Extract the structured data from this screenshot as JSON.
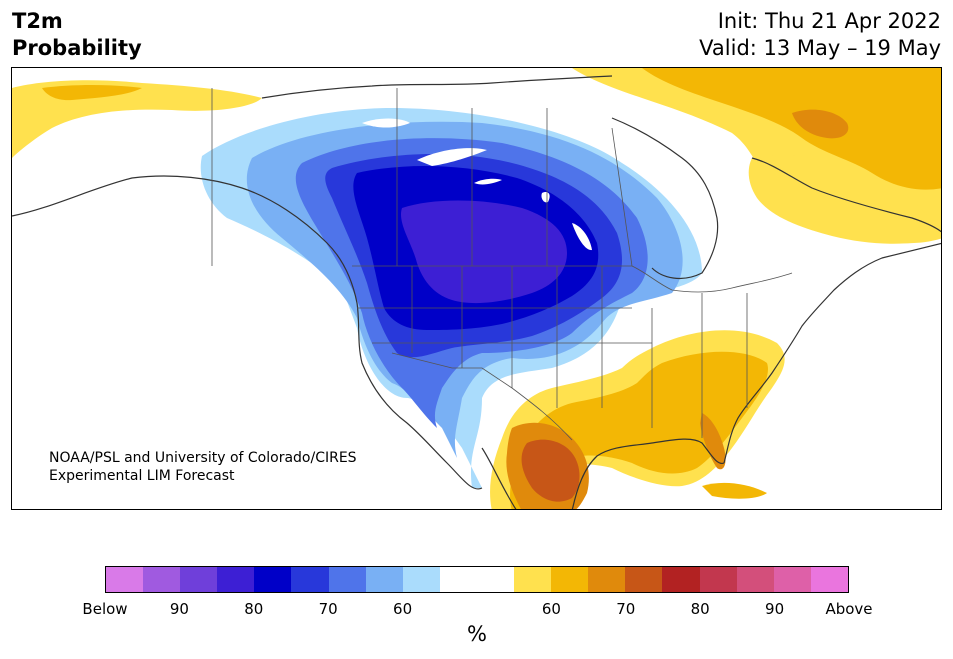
{
  "title": {
    "line1": "T2m",
    "line2": "Probability"
  },
  "header": {
    "init": "Init: Thu 21 Apr 2022",
    "valid": "Valid: 13 May – 19 May"
  },
  "credit": {
    "line1": "NOAA/PSL and University of Colorado/CIRES",
    "line2": "Experimental LIM Forecast"
  },
  "colorbar": {
    "unit": "%",
    "colors": [
      "#d97ae8",
      "#a05ae0",
      "#6f3fda",
      "#3d1fd4",
      "#0000c8",
      "#2838da",
      "#4f74ea",
      "#79b0f4",
      "#aadcfc",
      "#ffffff",
      "#ffffff",
      "#ffe14e",
      "#f3b705",
      "#e08a0c",
      "#c75617",
      "#b22222",
      "#c2374e",
      "#d34f7b",
      "#de60a8",
      "#ea75de"
    ],
    "labels": [
      "Below",
      "90",
      "80",
      "70",
      "60",
      "60",
      "70",
      "80",
      "90",
      "Above"
    ]
  },
  "colors": {
    "below_90": "#a05ae0",
    "below_80": "#3d1fd4",
    "below_75": "#0000c8",
    "below_70": "#2838da",
    "below_65": "#4f74ea",
    "below_60": "#79b0f4",
    "below_55": "#aadcfc",
    "above_55": "#ffe14e",
    "above_60": "#f3b705",
    "above_65": "#e08a0c",
    "above_70": "#c75617",
    "coast": "#333333"
  }
}
